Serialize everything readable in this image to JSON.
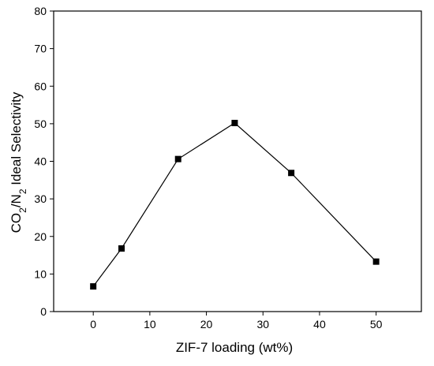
{
  "chart_data": {
    "type": "line",
    "title": "",
    "xlabel": "ZIF-7 loading (wt%)",
    "ylabel": {
      "parts": [
        "CO",
        "2",
        "/N",
        "2",
        " Ideal Selectivity"
      ],
      "subscript_flags": [
        false,
        true,
        false,
        true,
        false
      ]
    },
    "xlim": [
      -7,
      58
    ],
    "ylim": [
      0,
      80
    ],
    "xticks": [
      0,
      10,
      20,
      30,
      40,
      50
    ],
    "yticks": [
      0,
      10,
      20,
      30,
      40,
      50,
      60,
      70,
      80
    ],
    "xtick_labels": [
      "0",
      "10",
      "20",
      "30",
      "40",
      "50"
    ],
    "ytick_labels": [
      "0",
      "10",
      "20",
      "30",
      "40",
      "50",
      "60",
      "70",
      "80"
    ],
    "grid": false,
    "legend": "none",
    "series": [
      {
        "marker": "square",
        "color": "#000000",
        "x": [
          0,
          5,
          15,
          25,
          35,
          50
        ],
        "y": [
          6.7,
          16.8,
          40.6,
          50.2,
          36.9,
          13.3
        ]
      }
    ]
  }
}
